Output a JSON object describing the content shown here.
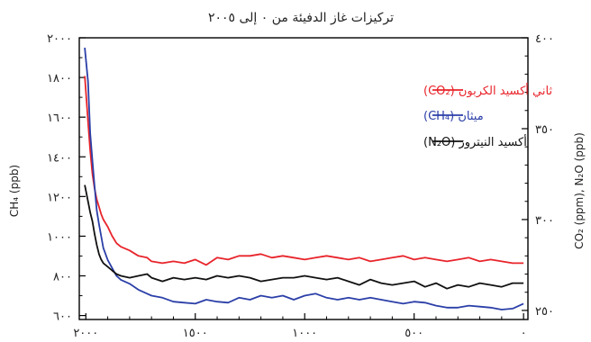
{
  "chart_data": {
    "type": "line",
    "title": "تركيزات غاز الدفيئة من ٠ إلى ٢٠٠٥",
    "x_axis": {
      "reversed": true,
      "lim": [
        -20,
        2030
      ],
      "ticks": [
        2000,
        1500,
        1000,
        500,
        0
      ],
      "tick_labels": [
        "٢٠٠٠",
        "١٥٠٠",
        "١٠٠٠",
        "٥٠٠",
        "٠"
      ]
    },
    "y_left": {
      "label": "CH₄ (ppb)",
      "lim": [
        580,
        2000
      ],
      "ticks": [
        600,
        800,
        1000,
        1200,
        1400,
        1600,
        1800,
        2000
      ],
      "tick_labels": [
        "٦٠٠",
        "٨٠٠",
        "١٠٠٠",
        "١٢٠٠",
        "١٤٠٠",
        "١٦٠٠",
        "١٨٠٠",
        "٢٠٠٠"
      ]
    },
    "y_right": {
      "label": "CO₂ (ppm), N₂O (ppb)",
      "lim": [
        245,
        400
      ],
      "ticks": [
        250,
        300,
        350,
        400
      ],
      "tick_labels": [
        "٢٥٠",
        "٣٠٠",
        "٣٥٠",
        "٤٠٠"
      ]
    },
    "series": [
      {
        "name": "ثاني أكسيد الكربون (CO₂)",
        "axis": "right",
        "color": "#e8242b",
        "x": [
          2005,
          1990,
          1980,
          1970,
          1960,
          1950,
          1940,
          1930,
          1920,
          1900,
          1880,
          1860,
          1840,
          1800,
          1760,
          1720,
          1700,
          1650,
          1600,
          1550,
          1500,
          1450,
          1400,
          1350,
          1300,
          1250,
          1200,
          1150,
          1100,
          1050,
          1000,
          950,
          900,
          850,
          800,
          750,
          700,
          650,
          600,
          550,
          500,
          450,
          400,
          350,
          300,
          250,
          200,
          150,
          100,
          50,
          0
        ],
        "y": [
          379,
          354,
          338,
          325,
          317,
          311,
          307,
          303,
          300,
          296,
          291,
          287,
          285,
          283,
          280,
          279,
          277,
          276,
          277,
          276,
          278,
          275,
          279,
          278,
          280,
          280,
          281,
          279,
          280,
          279,
          278,
          279,
          280,
          279,
          278,
          279,
          277,
          278,
          279,
          280,
          278,
          279,
          278,
          277,
          278,
          279,
          277,
          278,
          277,
          276,
          276
        ]
      },
      {
        "name": "ميثان (CH₄)",
        "axis": "left",
        "color": "#2b3fa8",
        "x": [
          2005,
          1990,
          1980,
          1970,
          1960,
          1950,
          1940,
          1930,
          1920,
          1900,
          1880,
          1860,
          1840,
          1800,
          1760,
          1720,
          1700,
          1650,
          1600,
          1550,
          1500,
          1450,
          1400,
          1350,
          1300,
          1250,
          1200,
          1150,
          1100,
          1050,
          1000,
          950,
          900,
          850,
          800,
          750,
          700,
          650,
          600,
          550,
          500,
          450,
          400,
          350,
          300,
          250,
          200,
          150,
          100,
          50,
          0
        ],
        "y": [
          1950,
          1780,
          1520,
          1380,
          1250,
          1130,
          1060,
          1000,
          940,
          880,
          840,
          800,
          780,
          760,
          730,
          710,
          700,
          690,
          670,
          665,
          660,
          680,
          670,
          665,
          690,
          680,
          700,
          690,
          700,
          680,
          700,
          710,
          690,
          680,
          690,
          680,
          690,
          680,
          670,
          660,
          670,
          665,
          650,
          640,
          640,
          650,
          645,
          640,
          630,
          635,
          660
        ]
      },
      {
        "name": "أكسيد النيتروز (N₂O)",
        "axis": "right",
        "color": "#111111",
        "x": [
          2005,
          1990,
          1980,
          1970,
          1960,
          1950,
          1940,
          1930,
          1920,
          1900,
          1880,
          1860,
          1840,
          1800,
          1760,
          1720,
          1700,
          1650,
          1600,
          1550,
          1500,
          1450,
          1400,
          1350,
          1300,
          1250,
          1200,
          1150,
          1100,
          1050,
          1000,
          950,
          900,
          850,
          800,
          750,
          700,
          650,
          600,
          550,
          500,
          450,
          400,
          350,
          300,
          250,
          200,
          150,
          100,
          50,
          0
        ],
        "y": [
          319,
          310,
          304,
          299,
          292,
          286,
          281,
          278,
          276,
          274,
          272,
          270,
          269,
          268,
          269,
          270,
          268,
          266,
          268,
          267,
          268,
          267,
          269,
          268,
          269,
          268,
          266,
          267,
          268,
          268,
          269,
          268,
          267,
          268,
          266,
          264,
          267,
          265,
          264,
          265,
          266,
          263,
          265,
          262,
          264,
          263,
          265,
          264,
          263,
          265,
          265
        ]
      }
    ],
    "legend": {
      "position": "top-right"
    }
  }
}
